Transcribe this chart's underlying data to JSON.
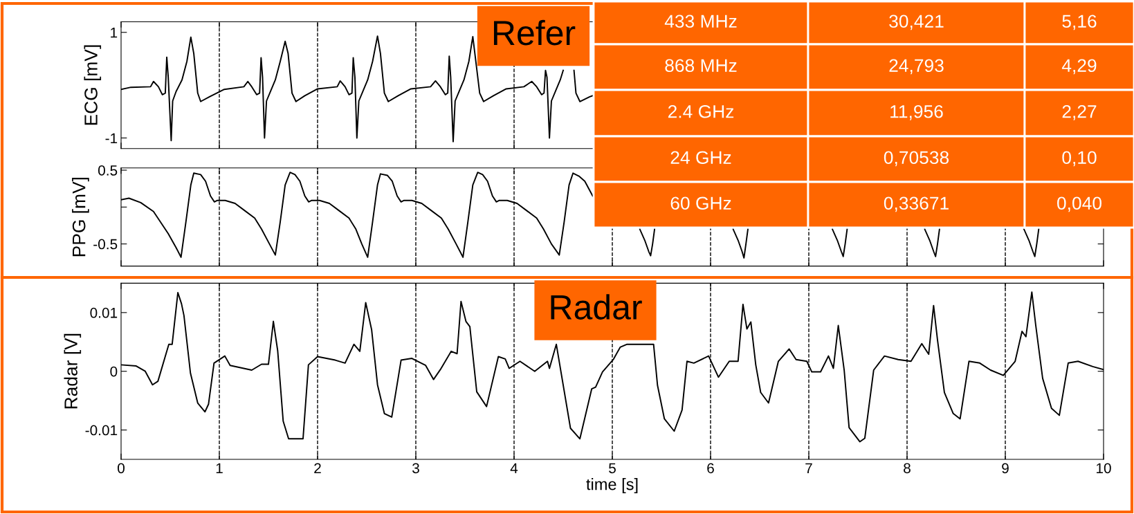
{
  "chart_data": [
    {
      "type": "line",
      "ylabel": "ECG [mV]",
      "xlim": [
        0,
        10
      ],
      "xticks": [
        0,
        1,
        2,
        3,
        4,
        5,
        6,
        7,
        8,
        9,
        10
      ],
      "ylim": [
        -1.2,
        1.2
      ],
      "yticks": [
        -1,
        1
      ],
      "tick_labels": "y",
      "x": [
        0,
        0.1,
        0.3,
        0.33,
        0.38,
        0.42,
        0.45,
        0.465,
        0.48,
        0.51,
        0.525,
        0.56,
        0.62,
        0.67,
        0.71,
        0.74,
        0.78,
        0.81,
        0.9,
        1.05,
        1.25,
        1.29,
        1.33,
        1.38,
        1.41,
        1.425,
        1.44,
        1.46,
        1.48,
        1.52,
        1.57,
        1.62,
        1.67,
        1.7,
        1.74,
        1.78,
        1.87,
        2.0,
        2.2,
        2.23,
        2.28,
        2.32,
        2.35,
        2.363,
        2.38,
        2.4,
        2.42,
        2.46,
        2.51,
        2.56,
        2.61,
        2.64,
        2.68,
        2.72,
        2.82,
        2.95,
        3.15,
        3.2,
        3.25,
        3.3,
        3.325,
        3.34,
        3.355,
        3.38,
        3.4,
        3.44,
        3.49,
        3.54,
        3.58,
        3.65,
        3.69,
        3.79,
        3.92,
        4.1,
        4.18,
        4.23,
        4.28,
        4.305,
        4.32,
        4.335,
        4.36,
        4.38,
        4.42,
        4.47,
        4.5,
        4.56,
        4.61,
        4.63,
        4.67,
        4.77,
        4.8
      ],
      "series": [
        {
          "color": "#000000",
          "values": [
            -0.08,
            -0.04,
            -0.03,
            0.07,
            -0.03,
            -0.18,
            -0.15,
            0.53,
            0.15,
            -1.05,
            -0.3,
            -0.12,
            0.1,
            0.45,
            0.91,
            0.6,
            -0.15,
            -0.31,
            -0.22,
            -0.08,
            -0.03,
            0.07,
            -0.03,
            -0.18,
            -0.15,
            0.52,
            0.15,
            -1.0,
            -0.3,
            -0.12,
            0.1,
            0.45,
            0.83,
            0.6,
            -0.15,
            -0.31,
            -0.2,
            -0.07,
            -0.03,
            0.08,
            -0.03,
            -0.18,
            -0.15,
            0.52,
            0.15,
            -1.0,
            -0.3,
            -0.12,
            0.1,
            0.45,
            0.93,
            0.6,
            -0.15,
            -0.31,
            -0.2,
            -0.07,
            -0.03,
            0.08,
            -0.03,
            -0.18,
            -0.15,
            0.55,
            0.15,
            -1.07,
            -0.3,
            -0.12,
            0.1,
            0.45,
            0.92,
            -0.15,
            -0.31,
            -0.2,
            -0.07,
            -0.03,
            0.07,
            -0.03,
            -0.18,
            -0.15,
            0.28,
            0.15,
            -1.0,
            -0.3,
            -0.12,
            0.1,
            0.28,
            null,
            0.28,
            -0.15,
            -0.31,
            -0.22,
            -0.2
          ]
        }
      ],
      "ref_lines": [
        {
          "axis": "x",
          "value": 1,
          "color": "#000000",
          "line_style": "dashed"
        },
        {
          "axis": "x",
          "value": 2,
          "color": "#000000",
          "line_style": "dashed"
        },
        {
          "axis": "x",
          "value": 3,
          "color": "#000000",
          "line_style": "dashed"
        },
        {
          "axis": "x",
          "value": 4,
          "color": "#000000",
          "line_style": "dashed"
        }
      ],
      "annotations": [
        "Refer"
      ]
    },
    {
      "type": "line",
      "ylabel": "PPG [mV]",
      "xlim": [
        0,
        10
      ],
      "xticks": [
        0,
        1,
        2,
        3,
        4,
        5,
        6,
        7,
        8,
        9,
        10
      ],
      "ylim": [
        -0.8,
        0.53
      ],
      "yticks": [
        -0.5,
        {
          "value": 0,
          "label": null
        },
        0.5
      ],
      "tick_labels": "y",
      "x": [
        0,
        0.08,
        0.2,
        0.33,
        0.48,
        0.56,
        0.61,
        0.66,
        0.71,
        0.74,
        0.81,
        0.86,
        0.91,
        0.95,
        0.98,
        1.06,
        1.16,
        1.26,
        1.36,
        1.43,
        1.51,
        1.57,
        1.62,
        1.67,
        1.72,
        1.77,
        1.82,
        1.87,
        1.91,
        1.94,
        2.02,
        2.12,
        2.22,
        2.32,
        2.39,
        2.45,
        2.51,
        2.56,
        2.61,
        2.64,
        2.71,
        2.76,
        2.81,
        2.85,
        2.88,
        2.96,
        3.06,
        3.16,
        3.26,
        3.33,
        3.41,
        3.48,
        3.53,
        3.58,
        3.63,
        3.68,
        3.73,
        3.78,
        3.82,
        3.85,
        3.93,
        4.03,
        4.13,
        4.23,
        4.3,
        4.38,
        4.46,
        4.51,
        4.56,
        4.6,
        4.66,
        4.72,
        4.8,
        4.85,
        5.28,
        5.33,
        5.37,
        5.39,
        5.41,
        5.43,
        5.5,
        6.23,
        6.28,
        6.32,
        6.34,
        6.36,
        6.38,
        6.45,
        7.24,
        7.29,
        7.33,
        7.35,
        7.37,
        7.39,
        7.45,
        8.18,
        8.23,
        8.27,
        8.29,
        8.31,
        8.33,
        8.4,
        9.19,
        9.24,
        9.28,
        9.3,
        9.32,
        9.34
      ],
      "series": [
        {
          "color": "#000000",
          "values": [
            0.1,
            0.12,
            0.06,
            -0.06,
            -0.36,
            -0.55,
            -0.68,
            -0.2,
            0.3,
            0.46,
            0.44,
            0.35,
            0.15,
            0.07,
            0.09,
            0.09,
            0.05,
            -0.05,
            -0.15,
            -0.3,
            -0.5,
            -0.65,
            -0.2,
            0.3,
            0.47,
            0.44,
            0.35,
            0.15,
            0.07,
            0.09,
            0.09,
            0.05,
            -0.05,
            -0.15,
            -0.3,
            -0.5,
            -0.68,
            -0.2,
            0.3,
            0.45,
            0.43,
            0.35,
            0.15,
            0.07,
            0.09,
            0.09,
            0.05,
            -0.05,
            -0.15,
            -0.3,
            -0.5,
            -0.68,
            -0.2,
            0.3,
            0.47,
            0.44,
            0.35,
            0.15,
            0.07,
            0.09,
            0.09,
            0.05,
            -0.05,
            -0.15,
            -0.3,
            -0.5,
            -0.65,
            -0.2,
            0.3,
            0.46,
            0.42,
            0.35,
            0.15,
            null,
            -0.3,
            -0.45,
            -0.6,
            -0.66,
            -0.5,
            -0.3,
            null,
            -0.3,
            -0.45,
            -0.6,
            -0.69,
            -0.5,
            -0.3,
            null,
            -0.3,
            -0.45,
            -0.6,
            -0.67,
            -0.5,
            -0.3,
            null,
            -0.3,
            -0.45,
            -0.6,
            -0.67,
            -0.5,
            -0.3,
            null,
            -0.3,
            -0.45,
            -0.6,
            -0.67,
            -0.5,
            -0.3
          ]
        }
      ],
      "ref_lines": [
        {
          "axis": "x",
          "value": 1,
          "color": "#000000",
          "line_style": "dashed"
        },
        {
          "axis": "x",
          "value": 2,
          "color": "#000000",
          "line_style": "dashed"
        },
        {
          "axis": "x",
          "value": 3,
          "color": "#000000",
          "line_style": "dashed"
        },
        {
          "axis": "x",
          "value": 4,
          "color": "#000000",
          "line_style": "dashed"
        },
        {
          "axis": "x",
          "value": 5,
          "color": "#000000",
          "line_style": "dashed"
        },
        {
          "axis": "x",
          "value": 6,
          "color": "#000000",
          "line_style": "dashed"
        },
        {
          "axis": "x",
          "value": 7,
          "color": "#000000",
          "line_style": "dashed"
        },
        {
          "axis": "x",
          "value": 8,
          "color": "#000000",
          "line_style": "dashed"
        },
        {
          "axis": "x",
          "value": 9,
          "color": "#000000",
          "line_style": "dashed"
        }
      ]
    },
    {
      "type": "line",
      "ylabel": "Radar [V]",
      "xlabel": "time [s]",
      "xlim": [
        0,
        10
      ],
      "xticks": [
        0,
        1,
        2,
        3,
        4,
        5,
        6,
        7,
        8,
        9,
        10
      ],
      "ylim": [
        -0.015,
        0.015
      ],
      "yticks": [
        -0.01,
        0,
        0.01
      ],
      "x": [
        0,
        0.154,
        0.246,
        0.32,
        0.375,
        0.486,
        0.52,
        0.578,
        0.615,
        0.64,
        0.706,
        0.78,
        0.854,
        0.89,
        0.946,
        1.056,
        1.11,
        1.33,
        1.43,
        1.5,
        1.55,
        1.594,
        1.65,
        1.705,
        1.852,
        1.907,
        2.0,
        2.18,
        2.28,
        2.37,
        2.43,
        2.49,
        2.55,
        2.61,
        2.68,
        2.755,
        2.85,
        2.96,
        3.1,
        3.18,
        3.25,
        3.36,
        3.42,
        3.46,
        3.51,
        3.55,
        3.62,
        3.72,
        3.84,
        3.91,
        3.95,
        4.06,
        4.21,
        4.34,
        4.36,
        4.43,
        4.574,
        4.67,
        4.79,
        4.83,
        4.9,
        5.01,
        5.08,
        5.15,
        5.42,
        5.46,
        5.53,
        5.63,
        5.71,
        5.76,
        5.83,
        5.98,
        6.08,
        6.19,
        6.28,
        6.33,
        6.37,
        6.41,
        6.46,
        6.51,
        6.59,
        6.69,
        6.8,
        6.87,
        6.98,
        7.03,
        7.12,
        7.2,
        7.25,
        7.3,
        7.36,
        7.41,
        7.52,
        7.57,
        7.66,
        7.77,
        7.91,
        8.04,
        8.15,
        8.22,
        8.27,
        8.31,
        8.38,
        8.47,
        8.54,
        8.63,
        8.74,
        8.85,
        8.98,
        9.1,
        9.17,
        9.21,
        9.27,
        9.31,
        9.38,
        9.47,
        9.55,
        9.64,
        9.74,
        9.89,
        10.0
      ],
      "series": [
        {
          "color": "#000000",
          "values": [
            0.0011,
            0.0009,
            0.0,
            -0.0023,
            -0.0017,
            0.0046,
            0.0046,
            0.0134,
            0.0115,
            0.0095,
            -0.0003,
            -0.0054,
            -0.0069,
            -0.0056,
            0.0014,
            0.0026,
            0.001,
            0.0002,
            0.0012,
            0.0012,
            0.0085,
            0.0035,
            -0.0085,
            -0.0115,
            -0.0115,
            0.0011,
            0.0025,
            0.0019,
            0.0014,
            0.0046,
            0.0034,
            0.0117,
            0.0071,
            -0.0023,
            -0.0072,
            -0.0078,
            0.0019,
            0.0022,
            0.001,
            -0.0014,
            0.0003,
            0.0034,
            0.003,
            0.0119,
            0.0085,
            0.0076,
            -0.0035,
            -0.006,
            0.0025,
            0.0021,
            0.0005,
            0.0017,
            0.0,
            0.0017,
            0.0005,
            0.0046,
            -0.0097,
            -0.0115,
            -0.003,
            -0.0027,
            -0.0001,
            0.002,
            0.0041,
            0.0046,
            0.0046,
            -0.0024,
            -0.0081,
            -0.0102,
            -0.0066,
            0.0017,
            0.0014,
            0.0026,
            -0.001,
            0.0017,
            0.0017,
            0.0114,
            0.0072,
            0.0084,
            0.0011,
            -0.0036,
            -0.0054,
            0.0017,
            0.0038,
            0.002,
            0.0017,
            -0.0001,
            -0.0001,
            0.0026,
            0.0005,
            0.0078,
            0.0002,
            -0.0096,
            -0.012,
            -0.0114,
            0.0002,
            0.0026,
            0.002,
            0.0017,
            0.0047,
            0.0029,
            0.0112,
            0.0053,
            -0.0036,
            -0.0072,
            -0.0081,
            0.0017,
            0.0014,
            0.0002,
            -0.0007,
            0.0017,
            0.0068,
            0.0059,
            0.0135,
            0.0078,
            -0.0012,
            -0.0063,
            -0.0075,
            0.0014,
            0.0017,
            0.0008,
            0.0003
          ]
        }
      ],
      "ref_lines": [
        {
          "axis": "x",
          "value": 1,
          "color": "#000000",
          "line_style": "dashed"
        },
        {
          "axis": "x",
          "value": 2,
          "color": "#000000",
          "line_style": "dashed"
        },
        {
          "axis": "x",
          "value": 3,
          "color": "#000000",
          "line_style": "dashed"
        },
        {
          "axis": "x",
          "value": 4,
          "color": "#000000",
          "line_style": "dashed"
        },
        {
          "axis": "x",
          "value": 5,
          "color": "#000000",
          "line_style": "dashed"
        },
        {
          "axis": "x",
          "value": 6,
          "color": "#000000",
          "line_style": "dashed"
        },
        {
          "axis": "x",
          "value": 7,
          "color": "#000000",
          "line_style": "dashed"
        },
        {
          "axis": "x",
          "value": 8,
          "color": "#000000",
          "line_style": "dashed"
        },
        {
          "axis": "x",
          "value": 9,
          "color": "#000000",
          "line_style": "dashed"
        }
      ],
      "annotations": [
        "Radar"
      ]
    },
    {
      "type": "other",
      "annotations": [
        "433 MHz",
        "30,421",
        "5,16",
        "868 MHz",
        "24,793",
        "4,29",
        "2.4 GHz",
        "11,956",
        "2,27",
        "24 GHz",
        "0,70538",
        "0,10",
        "60 GHz",
        "0,33671",
        "0,040"
      ]
    }
  ]
}
